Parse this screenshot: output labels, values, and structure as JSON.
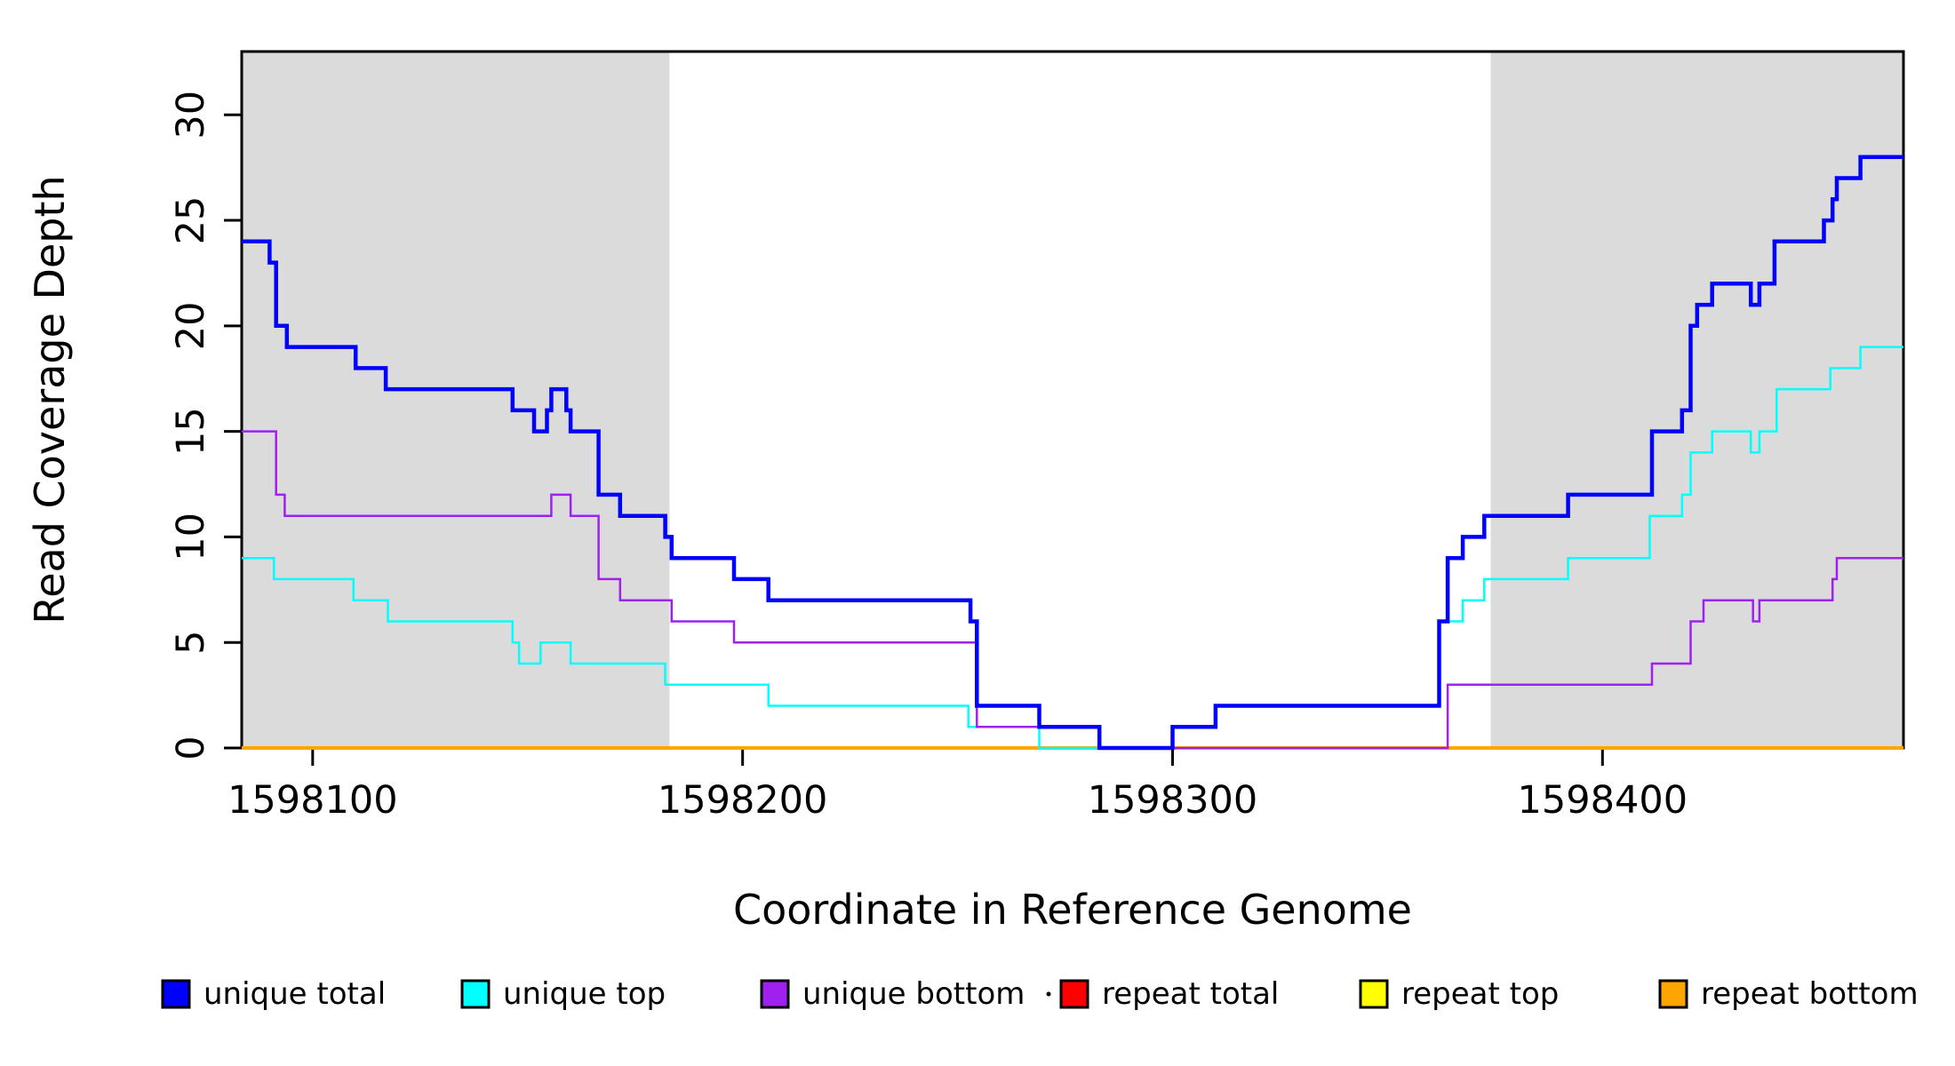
{
  "figure": {
    "xlabel": "Coordinate in Reference Genome",
    "ylabel": "Read Coverage Depth"
  },
  "legend": {
    "items": [
      {
        "label": "unique total",
        "color": "#0000FF"
      },
      {
        "label": "unique top",
        "color": "#00FFFF"
      },
      {
        "label": "unique bottom",
        "color": "#A020F0"
      },
      {
        "label": "repeat total",
        "color": "#FF0000"
      },
      {
        "label": "repeat top",
        "color": "#FFFF00"
      },
      {
        "label": "repeat bottom",
        "color": "#FFA500"
      }
    ]
  },
  "chart_data": {
    "type": "line",
    "subtype": "step-coverage",
    "title": "",
    "xlabel": "Coordinate in Reference Genome",
    "ylabel": "Read Coverage Depth",
    "xlim": [
      1598083.5,
      1598470
    ],
    "ylim": [
      0,
      33
    ],
    "x_ticks": [
      1598100,
      1598200,
      1598300,
      1598400
    ],
    "y_ticks": [
      0,
      5,
      10,
      15,
      20,
      25,
      30
    ],
    "grid": false,
    "legend_position": "bottom",
    "shade_color": "#DBDBDB",
    "shaded_regions": [
      [
        1598083.5,
        1598183
      ],
      [
        1598374,
        1598470
      ]
    ],
    "draw_order": [
      "repeat total",
      "repeat top",
      "repeat bottom",
      "unique top",
      "unique bottom",
      "unique total"
    ],
    "series": [
      {
        "name": "unique total",
        "color": "#0000FF",
        "width": 4.5,
        "steps": [
          [
            1598083.5,
            24
          ],
          [
            1598090,
            23
          ],
          [
            1598091.5,
            20
          ],
          [
            1598094,
            19
          ],
          [
            1598110,
            18
          ],
          [
            1598117,
            17
          ],
          [
            1598146.5,
            16
          ],
          [
            1598151.5,
            15
          ],
          [
            1598154.5,
            16
          ],
          [
            1598155.5,
            17
          ],
          [
            1598159,
            16
          ],
          [
            1598160,
            15
          ],
          [
            1598166.5,
            12
          ],
          [
            1598171.5,
            11
          ],
          [
            1598182,
            10
          ],
          [
            1598183.5,
            9
          ],
          [
            1598198,
            8
          ],
          [
            1598206,
            7
          ],
          [
            1598253,
            6
          ],
          [
            1598254.5,
            2
          ],
          [
            1598269,
            1
          ],
          [
            1598283,
            0
          ],
          [
            1598300,
            1
          ],
          [
            1598310,
            2
          ],
          [
            1598362,
            6
          ],
          [
            1598364,
            9
          ],
          [
            1598367.5,
            10
          ],
          [
            1598372.5,
            11
          ],
          [
            1598392,
            12
          ],
          [
            1598411.5,
            15
          ],
          [
            1598418.5,
            16
          ],
          [
            1598420.5,
            20
          ],
          [
            1598422,
            21
          ],
          [
            1598425.5,
            22
          ],
          [
            1598434.5,
            21
          ],
          [
            1598436.5,
            22
          ],
          [
            1598440,
            24
          ],
          [
            1598451.5,
            25
          ],
          [
            1598453.5,
            26
          ],
          [
            1598454.5,
            27
          ],
          [
            1598460,
            28
          ]
        ]
      },
      {
        "name": "unique top",
        "color": "#00FFFF",
        "width": 2.5,
        "steps": [
          [
            1598083.5,
            9
          ],
          [
            1598091,
            8
          ],
          [
            1598109.5,
            7
          ],
          [
            1598117.5,
            6
          ],
          [
            1598146.5,
            5
          ],
          [
            1598148,
            4
          ],
          [
            1598153,
            5
          ],
          [
            1598160,
            4
          ],
          [
            1598182,
            3
          ],
          [
            1598206,
            2
          ],
          [
            1598252.5,
            1
          ],
          [
            1598269,
            0
          ],
          [
            1598300,
            1
          ],
          [
            1598310,
            2
          ],
          [
            1598362,
            6
          ],
          [
            1598367.5,
            7
          ],
          [
            1598372.5,
            8
          ],
          [
            1598392,
            9
          ],
          [
            1598411,
            11
          ],
          [
            1598418.5,
            12
          ],
          [
            1598420.5,
            14
          ],
          [
            1598425.5,
            15
          ],
          [
            1598434.5,
            14
          ],
          [
            1598436.5,
            15
          ],
          [
            1598440.5,
            17
          ],
          [
            1598453,
            18
          ],
          [
            1598460,
            19
          ]
        ]
      },
      {
        "name": "unique bottom",
        "color": "#A020F0",
        "width": 2.5,
        "steps": [
          [
            1598083.5,
            15
          ],
          [
            1598091.5,
            12
          ],
          [
            1598093.5,
            11
          ],
          [
            1598155.5,
            12
          ],
          [
            1598160,
            11
          ],
          [
            1598166.5,
            8
          ],
          [
            1598171.5,
            7
          ],
          [
            1598183.5,
            6
          ],
          [
            1598198,
            5
          ],
          [
            1598254.5,
            1
          ],
          [
            1598283,
            0
          ],
          [
            1598364,
            3
          ],
          [
            1598411.5,
            4
          ],
          [
            1598420.5,
            6
          ],
          [
            1598423.5,
            7
          ],
          [
            1598435,
            6
          ],
          [
            1598436.5,
            7
          ],
          [
            1598453.5,
            8
          ],
          [
            1598454.5,
            9
          ]
        ]
      },
      {
        "name": "repeat total",
        "color": "#FF0000",
        "width": 3,
        "steps": [
          [
            1598083.5,
            0
          ]
        ]
      },
      {
        "name": "repeat top",
        "color": "#FFFF00",
        "width": 3,
        "steps": [
          [
            1598083.5,
            0
          ]
        ]
      },
      {
        "name": "repeat bottom",
        "color": "#FFA500",
        "width": 4,
        "steps": [
          [
            1598083.5,
            0
          ]
        ]
      }
    ]
  }
}
